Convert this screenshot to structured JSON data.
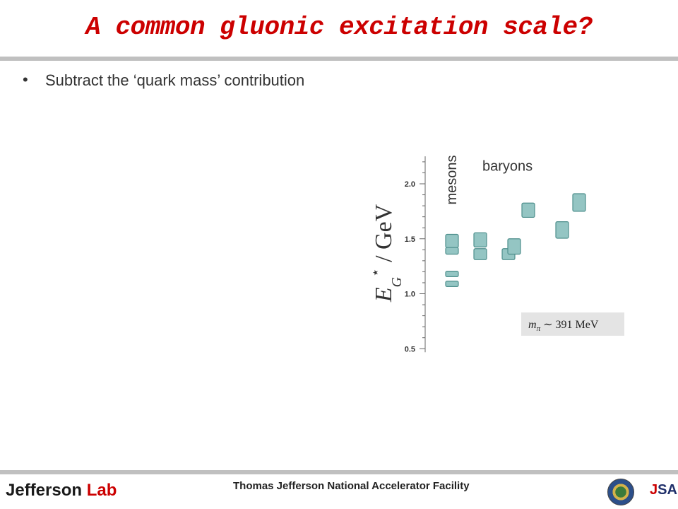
{
  "slide": {
    "title": "A common gluonic excitation scale?",
    "bullet": "Subtract the ‘quark mass’ contribution"
  },
  "footer": {
    "logo_word": "Jefferson",
    "logo_lab": "Lab",
    "caption": "Thomas Jefferson National Accelerator Facility",
    "jsa_j": "J",
    "jsa_rest": "SA"
  },
  "colors": {
    "title": "#cc0000",
    "box_fill": "#94c5c3",
    "box_stroke": "#4e8f8c",
    "rule": "#c0c0c0"
  },
  "chart_data": {
    "type": "scatter",
    "ylabel_main": "E",
    "ylabel_sup": "⋆",
    "ylabel_sub": "G",
    "ylabel_unit": " / GeV",
    "ylim": [
      0.5,
      2.25
    ],
    "yticks": [
      0.5,
      1.0,
      1.5,
      2.0
    ],
    "ytick_labels": [
      "0.5",
      "1.0",
      "1.5",
      "2.0"
    ],
    "group_labels": {
      "mesons": "mesons",
      "baryons": "baryons"
    },
    "annotation": {
      "main": "m",
      "sub": "π",
      "rest": " ∼ 391 MeV"
    },
    "points": [
      {
        "group": "mesons",
        "x": 0,
        "y": 1.48,
        "dy": 0.06
      },
      {
        "group": "mesons",
        "x": 0,
        "y": 1.39,
        "dy": 0.03
      },
      {
        "group": "mesons",
        "x": 0,
        "y": 1.18,
        "dy": 0.025
      },
      {
        "group": "mesons",
        "x": 0,
        "y": 1.09,
        "dy": 0.025
      },
      {
        "group": "baryons",
        "x": 1,
        "y": 1.49,
        "dy": 0.065
      },
      {
        "group": "baryons",
        "x": 1,
        "y": 1.36,
        "dy": 0.05
      },
      {
        "group": "baryons",
        "x": 2,
        "y": 1.36,
        "dy": 0.05
      },
      {
        "group": "baryons",
        "x": 2.2,
        "y": 1.43,
        "dy": 0.07
      },
      {
        "group": "baryons",
        "x": 2.7,
        "y": 1.76,
        "dy": 0.065
      },
      {
        "group": "baryons",
        "x": 3.9,
        "y": 1.58,
        "dy": 0.075
      },
      {
        "group": "baryons",
        "x": 4.5,
        "y": 1.83,
        "dy": 0.08
      }
    ]
  }
}
